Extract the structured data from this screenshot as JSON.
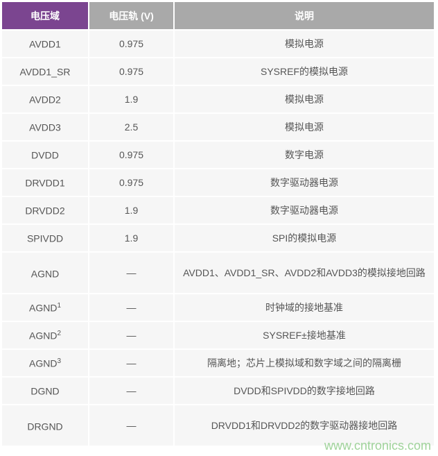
{
  "table": {
    "headers": [
      "电压域",
      "电压轨 (V)",
      "说明"
    ],
    "rows": [
      {
        "domain": "AVDD1",
        "sup": "",
        "rail": "0.975",
        "desc": "模拟电源"
      },
      {
        "domain": "AVDD1_SR",
        "sup": "",
        "rail": "0.975",
        "desc": "SYSREF的模拟电源"
      },
      {
        "domain": "AVDD2",
        "sup": "",
        "rail": "1.9",
        "desc": "模拟电源"
      },
      {
        "domain": "AVDD3",
        "sup": "",
        "rail": "2.5",
        "desc": "模拟电源"
      },
      {
        "domain": "DVDD",
        "sup": "",
        "rail": "0.975",
        "desc": "数字电源"
      },
      {
        "domain": "DRVDD1",
        "sup": "",
        "rail": "0.975",
        "desc": "数字驱动器电源"
      },
      {
        "domain": "DRVDD2",
        "sup": "",
        "rail": "1.9",
        "desc": "数字驱动器电源"
      },
      {
        "domain": "SPIVDD",
        "sup": "",
        "rail": "1.9",
        "desc": "SPI的模拟电源"
      },
      {
        "domain": "AGND",
        "sup": "",
        "rail": "—",
        "desc": "AVDD1、AVDD1_SR、AVDD2和AVDD3的模拟接地回路"
      },
      {
        "domain": "AGND",
        "sup": "1",
        "rail": "—",
        "desc": "时钟域的接地基准"
      },
      {
        "domain": "AGND",
        "sup": "2",
        "rail": "—",
        "desc": "SYSREF±接地基准"
      },
      {
        "domain": "AGND",
        "sup": "3",
        "rail": "—",
        "desc": "隔离地；芯片上模拟域和数字域之间的隔离栅"
      },
      {
        "domain": "DGND",
        "sup": "",
        "rail": "—",
        "desc": "DVDD和SPIVDD的数字接地回路"
      },
      {
        "domain": "DRGND",
        "sup": "",
        "rail": "—",
        "desc": "DRVDD1和DRVDD2的数字驱动器接地回路"
      }
    ]
  },
  "watermark": "www.cntronics.com",
  "colors": {
    "header_first": "#7b4590",
    "header": "#a9a9a9",
    "cell": "#f6f6f6"
  }
}
